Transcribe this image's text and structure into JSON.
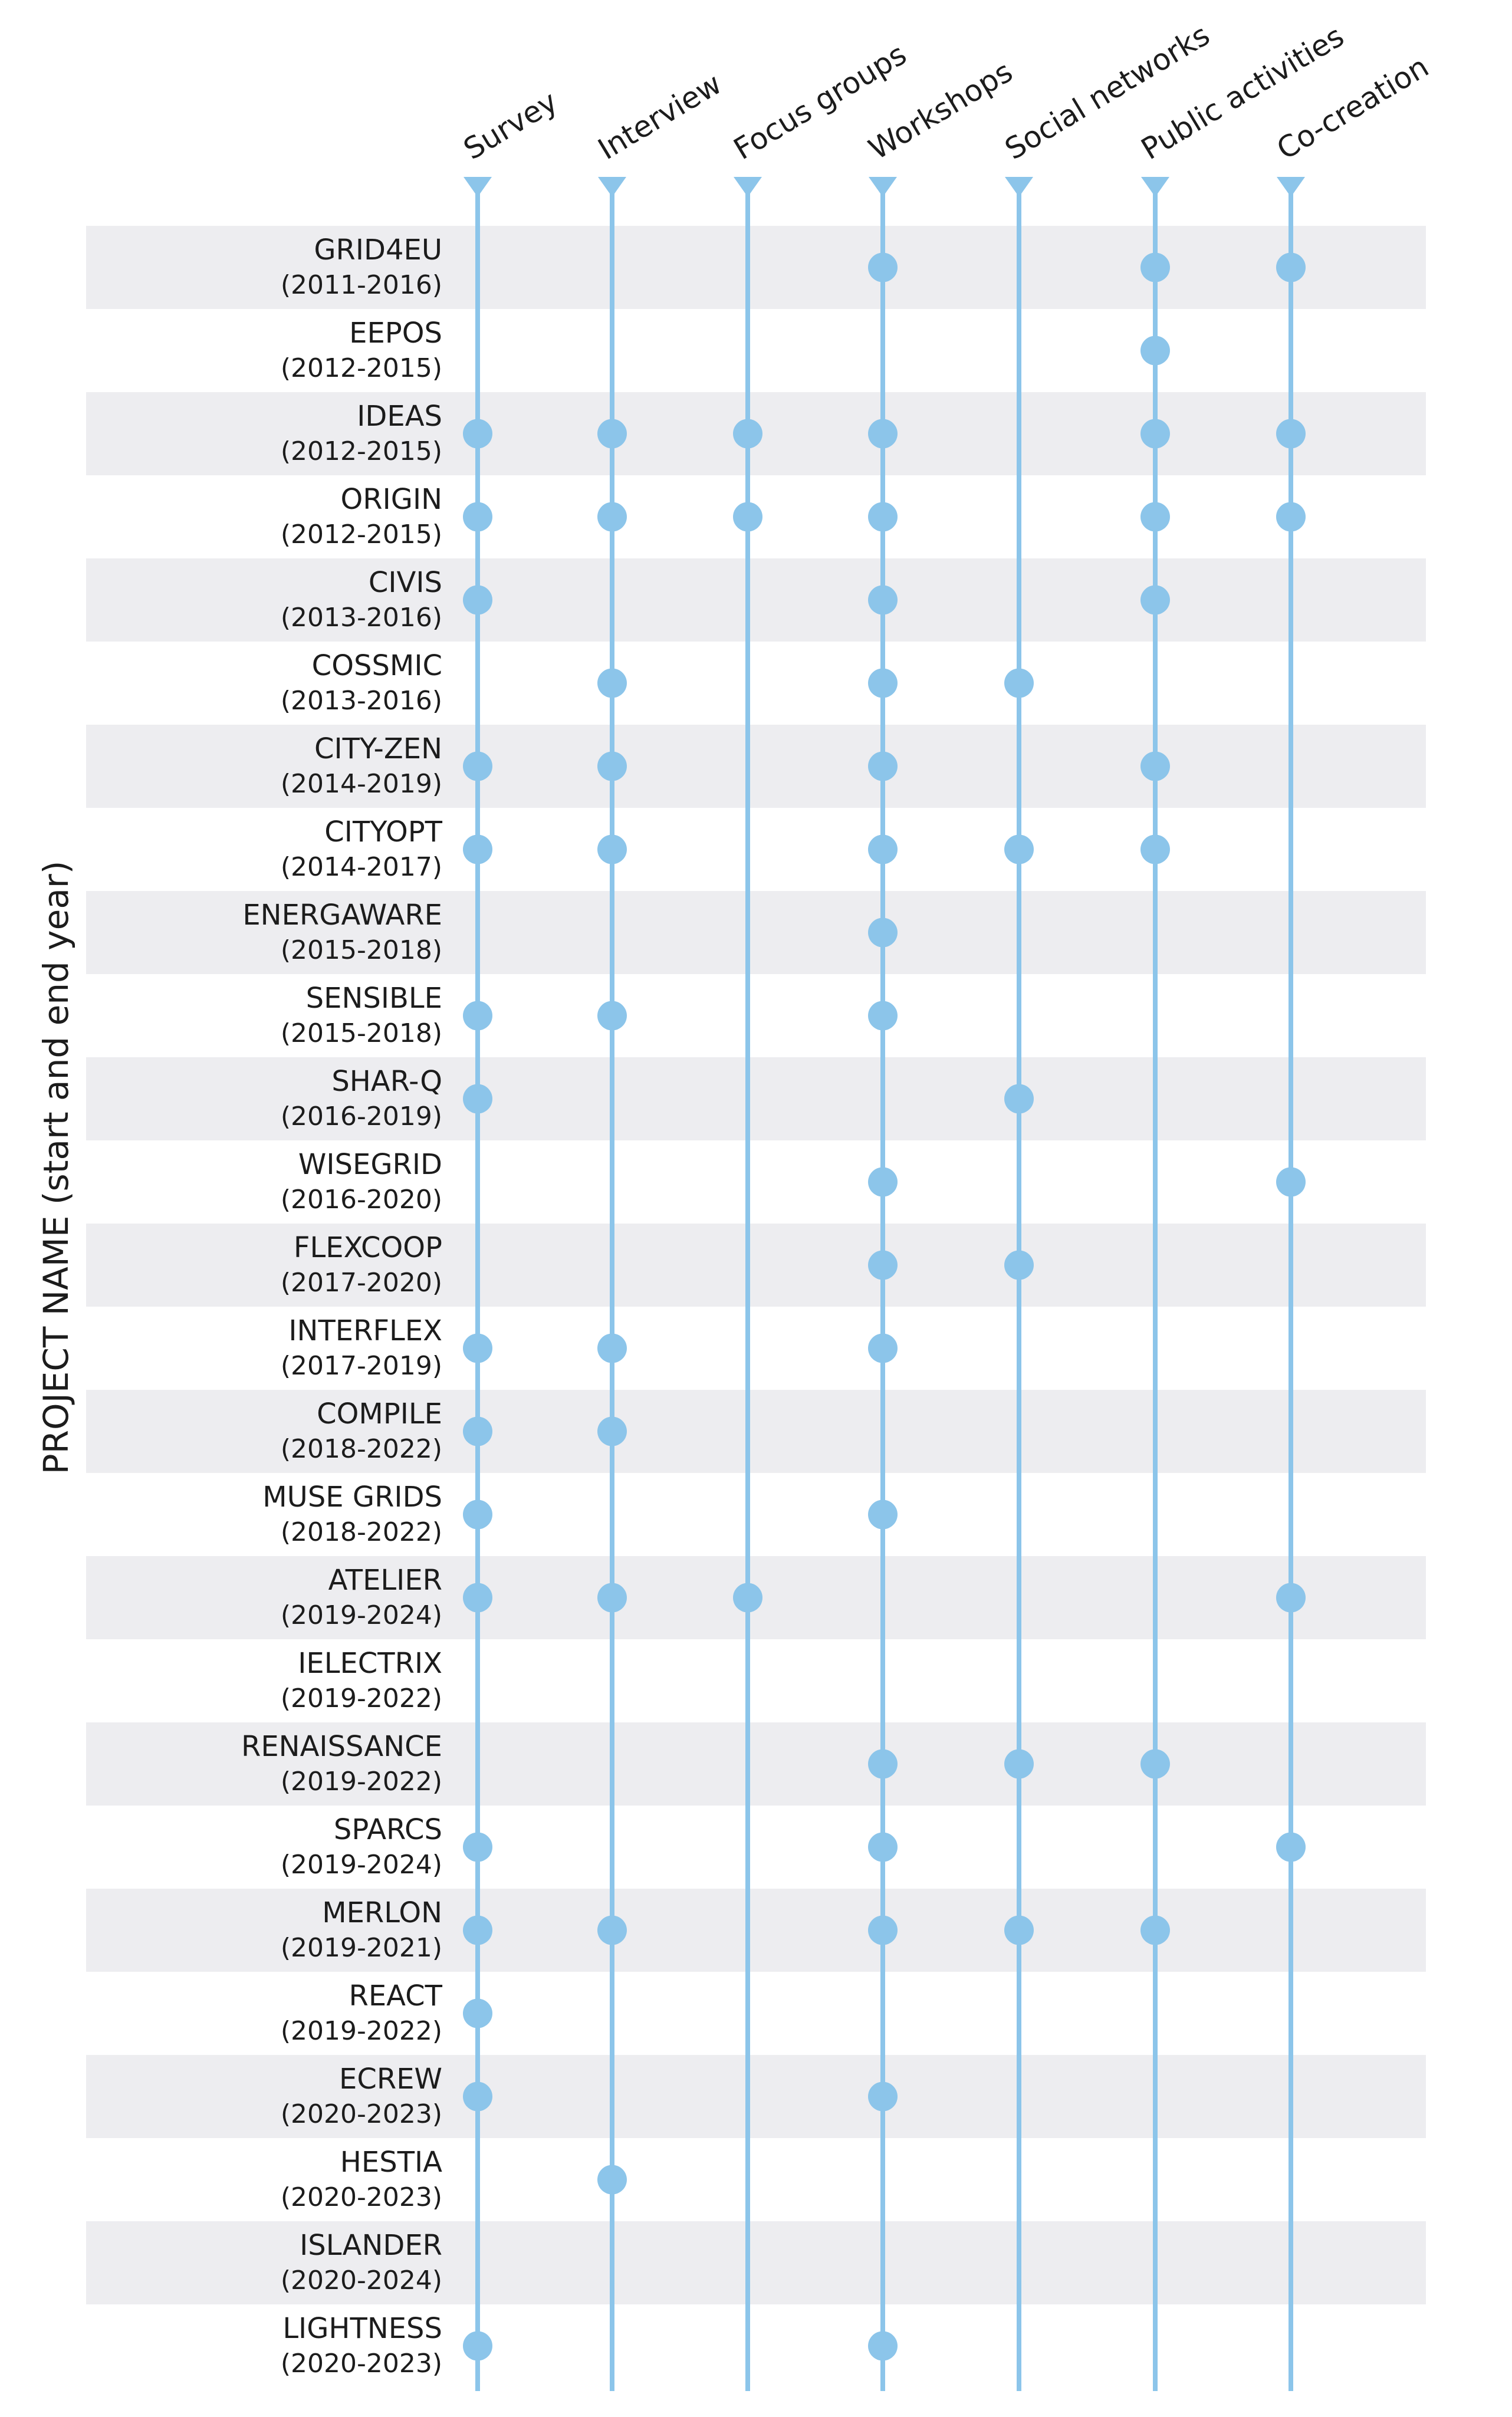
{
  "colors": {
    "row_band": "#ededf0",
    "line": "#8cc5ea",
    "dot": "#8cc5ea",
    "text": "#1c1c1c"
  },
  "chart_data": {
    "type": "dot-matrix",
    "ylabel": "PROJECT NAME (start and end year)",
    "methods": [
      "Survey",
      "Interview",
      "Focus groups",
      "Workshops",
      "Social networks",
      "Public activities",
      "Co-creation"
    ],
    "projects": [
      {
        "name": "GRID4EU",
        "years": "(2011-2016)",
        "methods": [
          "Workshops",
          "Public activities",
          "Co-creation"
        ]
      },
      {
        "name": "EEPOS",
        "years": "(2012-2015)",
        "methods": [
          "Public activities"
        ]
      },
      {
        "name": "IDEAS",
        "years": "(2012-2015)",
        "methods": [
          "Survey",
          "Interview",
          "Focus groups",
          "Workshops",
          "Public activities",
          "Co-creation"
        ]
      },
      {
        "name": "ORIGIN",
        "years": "(2012-2015)",
        "methods": [
          "Survey",
          "Interview",
          "Focus groups",
          "Workshops",
          "Public activities",
          "Co-creation"
        ]
      },
      {
        "name": "CIVIS",
        "years": "(2013-2016)",
        "methods": [
          "Survey",
          "Workshops",
          "Public activities"
        ]
      },
      {
        "name": "COSSMIC",
        "years": "(2013-2016)",
        "methods": [
          "Interview",
          "Workshops",
          "Social networks"
        ]
      },
      {
        "name": "CITY-ZEN",
        "years": "(2014-2019)",
        "methods": [
          "Survey",
          "Interview",
          "Workshops",
          "Public activities"
        ]
      },
      {
        "name": "CITYOPT",
        "years": "(2014-2017)",
        "methods": [
          "Survey",
          "Interview",
          "Workshops",
          "Social networks",
          "Public activities"
        ]
      },
      {
        "name": "ENERGAWARE",
        "years": "(2015-2018)",
        "methods": [
          "Workshops"
        ]
      },
      {
        "name": "SENSIBLE",
        "years": "(2015-2018)",
        "methods": [
          "Survey",
          "Interview",
          "Workshops"
        ]
      },
      {
        "name": "SHAR-Q",
        "years": "(2016-2019)",
        "methods": [
          "Survey",
          "Social networks"
        ]
      },
      {
        "name": "WISEGRID",
        "years": "(2016-2020)",
        "methods": [
          "Workshops",
          "Co-creation"
        ]
      },
      {
        "name": "FLEXCOOP",
        "years": "(2017-2020)",
        "methods": [
          "Workshops",
          "Social networks"
        ]
      },
      {
        "name": "INTERFLEX",
        "years": "(2017-2019)",
        "methods": [
          "Survey",
          "Interview",
          "Workshops"
        ]
      },
      {
        "name": "COMPILE",
        "years": "(2018-2022)",
        "methods": [
          "Survey",
          "Interview"
        ]
      },
      {
        "name": "MUSE GRIDS",
        "years": "(2018-2022)",
        "methods": [
          "Survey",
          "Workshops"
        ]
      },
      {
        "name": "ATELIER",
        "years": "(2019-2024)",
        "methods": [
          "Survey",
          "Interview",
          "Focus groups",
          "Co-creation"
        ]
      },
      {
        "name": "IELECTRIX",
        "years": "(2019-2022)",
        "methods": []
      },
      {
        "name": "RENAISSANCE",
        "years": "(2019-2022)",
        "methods": [
          "Workshops",
          "Social networks",
          "Public activities"
        ]
      },
      {
        "name": "SPARCS",
        "years": "(2019-2024)",
        "methods": [
          "Survey",
          "Workshops",
          "Co-creation"
        ]
      },
      {
        "name": "MERLON",
        "years": "(2019-2021)",
        "methods": [
          "Survey",
          "Interview",
          "Workshops",
          "Social networks",
          "Public activities"
        ]
      },
      {
        "name": "REACT",
        "years": "(2019-2022)",
        "methods": [
          "Survey"
        ]
      },
      {
        "name": "ECREW",
        "years": "(2020-2023)",
        "methods": [
          "Survey",
          "Workshops"
        ]
      },
      {
        "name": "HESTIA",
        "years": "(2020-2023)",
        "methods": [
          "Interview"
        ]
      },
      {
        "name": "ISLANDER",
        "years": "(2020-2024)",
        "methods": []
      },
      {
        "name": "LIGHTNESS",
        "years": "(2020-2023)",
        "methods": [
          "Survey",
          "Workshops"
        ]
      }
    ]
  }
}
